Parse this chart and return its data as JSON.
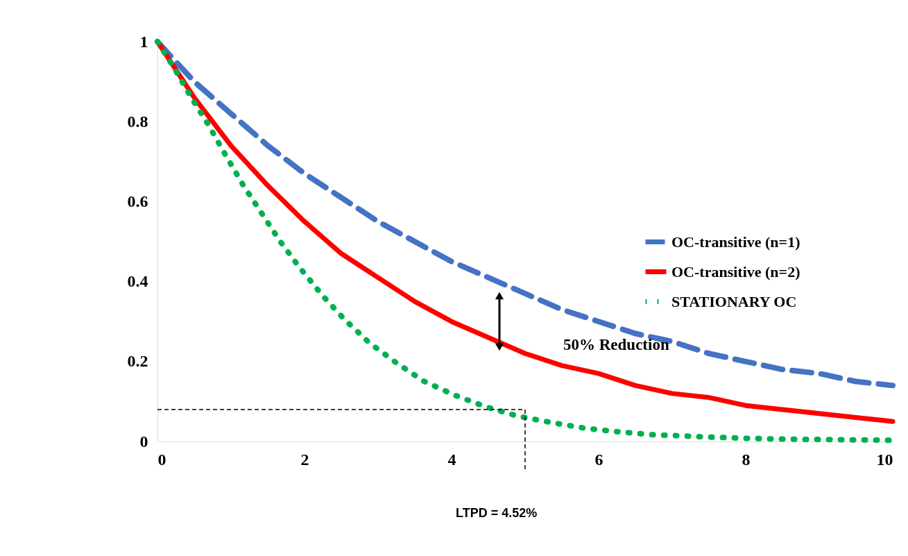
{
  "chart_data": {
    "type": "line",
    "xlim": [
      0,
      10
    ],
    "ylim": [
      0,
      1
    ],
    "xticks": [
      0,
      2,
      4,
      6,
      8,
      10
    ],
    "yticks": [
      0,
      0.2,
      0.4,
      0.6,
      0.8,
      1
    ],
    "grid": false,
    "legend": "right",
    "series": [
      {
        "name": "OC-transitive (n=1)",
        "color": "#4472c4",
        "line_style": "dashed",
        "x": [
          0,
          0.5,
          1,
          1.5,
          2,
          2.5,
          3,
          3.5,
          4,
          4.5,
          5,
          5.5,
          6,
          6.5,
          7,
          7.5,
          8,
          8.5,
          9,
          9.5,
          10
        ],
        "values": [
          1,
          0.9,
          0.82,
          0.74,
          0.67,
          0.61,
          0.55,
          0.5,
          0.45,
          0.41,
          0.37,
          0.33,
          0.3,
          0.27,
          0.25,
          0.22,
          0.2,
          0.18,
          0.17,
          0.15,
          0.14
        ]
      },
      {
        "name": "OC-transitive (n=2)",
        "color": "#ff0000",
        "line_style": "solid",
        "x": [
          0,
          0.5,
          1,
          1.5,
          2,
          2.5,
          3,
          3.5,
          4,
          4.5,
          5,
          5.5,
          6,
          6.5,
          7,
          7.5,
          8,
          8.5,
          9,
          9.5,
          10
        ],
        "values": [
          1,
          0.86,
          0.74,
          0.64,
          0.55,
          0.47,
          0.41,
          0.35,
          0.3,
          0.26,
          0.22,
          0.19,
          0.17,
          0.14,
          0.12,
          0.11,
          0.09,
          0.08,
          0.07,
          0.06,
          0.05
        ]
      },
      {
        "name": "STATIONARY OC",
        "color": "#00b050",
        "line_style": "dotted",
        "x": [
          0,
          0.24,
          0.46,
          0.7,
          0.93,
          1.17,
          1.42,
          1.67,
          1.93,
          2.24,
          2.54,
          2.88,
          3.24,
          3.62,
          4.04,
          4.46,
          4.91,
          5.37,
          5.82,
          6.27,
          6.73,
          7.5,
          8,
          8.5,
          9,
          9.5,
          10
        ],
        "values": [
          1,
          0.93,
          0.86,
          0.79,
          0.715,
          0.64,
          0.57,
          0.5,
          0.436,
          0.366,
          0.306,
          0.247,
          0.198,
          0.151,
          0.116,
          0.087,
          0.063,
          0.047,
          0.033,
          0.024,
          0.017,
          0.011,
          0.008,
          0.006,
          0.005,
          0.004,
          0.003
        ]
      }
    ],
    "ref_lines": [
      {
        "axis": "y",
        "value": 0.08,
        "color": "#000000",
        "line_style": "dashed"
      },
      {
        "axis": "x",
        "value": 5.0,
        "color": "#000000",
        "line_style": "dashed"
      }
    ],
    "annotations": [
      "50% Reduction",
      "LTPD = 4.52%"
    ]
  }
}
